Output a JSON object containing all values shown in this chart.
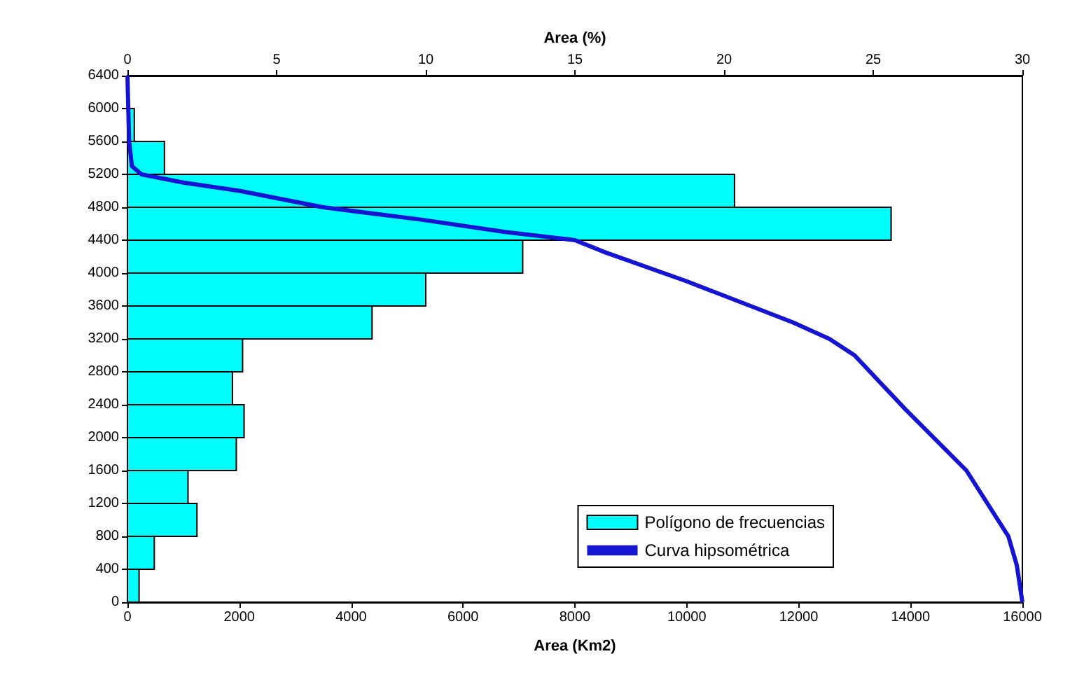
{
  "chart_data": {
    "type": "histogram",
    "orientation": "horizontal",
    "xlabel": "Area (Km2)",
    "x2label": "Area (%)",
    "series": [
      {
        "name": "Polígono de frecuencias",
        "color": "#00ffff",
        "axis": "x2",
        "bins": [
          0,
          400,
          800,
          1200,
          1600,
          2000,
          2400,
          2800,
          3200,
          3600,
          4000,
          4400,
          4800,
          5200,
          5600,
          6000,
          6400
        ],
        "values": [
          0.39,
          0.9,
          2.33,
          2.03,
          3.65,
          3.91,
          3.52,
          3.86,
          8.2,
          10.0,
          13.25,
          25.6,
          20.35,
          1.24,
          0.23,
          null
        ]
      },
      {
        "type": "line",
        "name": "Curva hipsométrica",
        "color": "#1414d2",
        "x": [
          6400,
          5600,
          5300,
          5200,
          5100,
          5000,
          4800,
          4650,
          4500,
          4400,
          4250,
          3900,
          3400,
          3200,
          3000,
          2350,
          1600,
          800,
          450,
          0
        ],
        "values": [
          0,
          30,
          80,
          250,
          1000,
          2000,
          3500,
          5250,
          6750,
          8000,
          8550,
          10000,
          11900,
          12550,
          13000,
          13900,
          15000,
          15750,
          15900,
          16000
        ]
      }
    ],
    "xlim": [
      0,
      16000
    ],
    "xticks": [
      0,
      2000,
      4000,
      6000,
      8000,
      10000,
      12000,
      14000,
      16000
    ],
    "x2lim": [
      0,
      30
    ],
    "x2ticks": [
      0,
      5,
      10,
      15,
      20,
      25,
      30
    ],
    "ylim": [
      0,
      6400
    ],
    "yticks": [
      0,
      400,
      800,
      1200,
      1600,
      2000,
      2400,
      2800,
      3200,
      3600,
      4000,
      4400,
      4800,
      5200,
      5600,
      6000,
      6400
    ],
    "legend": "bottom right",
    "grid": false
  }
}
